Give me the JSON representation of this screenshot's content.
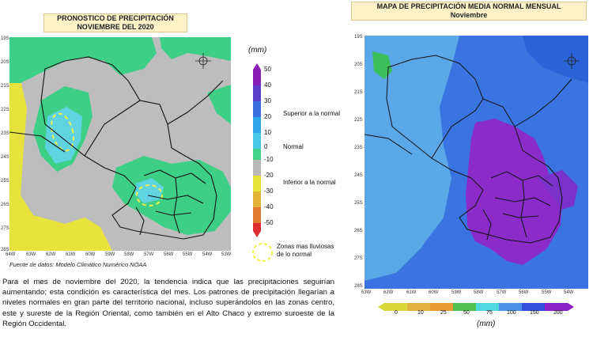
{
  "left_map": {
    "title_line1": "PRONOSTICO DE PRECIPITACIÓN",
    "title_line2": "NOVIEMBRE DEL 2020",
    "lat_ticks": [
      "19S",
      "20S",
      "21S",
      "22S",
      "23S",
      "24S",
      "25S",
      "26S",
      "27S",
      "28S"
    ],
    "lon_ticks": [
      "64W",
      "63W",
      "62W",
      "61W",
      "60W",
      "59W",
      "58W",
      "57W",
      "56W",
      "55W",
      "54W",
      "53W"
    ],
    "source": "Fuente de datos: Modelo Climático Numérico NOAA",
    "unit": "(mm)",
    "colorbar_labels": [
      "50",
      "40",
      "30",
      "20",
      "10",
      "0",
      "-10",
      "-20",
      "-30",
      "-40",
      "-50"
    ],
    "colorbar_colors": [
      "#8a1fb8",
      "#5a3fc8",
      "#3a6fe0",
      "#2ea6ea",
      "#46c9e6",
      "#3fd48a",
      "#b9b9b9",
      "#e6e23a",
      "#e2b43a",
      "#e07a2e",
      "#dc2e2e"
    ],
    "categories": {
      "above": "Superior a la normal",
      "normal": "Normal",
      "below": "Inferior a la normal"
    },
    "legend_dashed": "Zonas mas lluviosas de lo normal",
    "colors": {
      "gray": "#bdbdbd",
      "green": "#3ecf86",
      "cyan": "#5fd3e0",
      "yellow": "#e8e33c",
      "dashed": "#f0f04a"
    }
  },
  "right_map": {
    "title_line1": "MAPA DE PRECIPITACIÓN MEDIA NORMAL MENSUAL",
    "title_line2": "Noviembre",
    "lat_ticks": [
      "19S",
      "20S",
      "21S",
      "22S",
      "23S",
      "24S",
      "25S",
      "26S",
      "27S",
      "28S"
    ],
    "lon_ticks": [
      "63W",
      "62W",
      "61W",
      "60W",
      "59W",
      "58W",
      "57W",
      "56W",
      "55W",
      "54W"
    ],
    "colorbar_labels": [
      "0",
      "10",
      "25",
      "50",
      "75",
      "100",
      "150",
      "200"
    ],
    "colorbar_colors": [
      "#d8d83a",
      "#e0b040",
      "#e89a36",
      "#4fc24f",
      "#4fd8e0",
      "#4a90e8",
      "#3450d8",
      "#8a22c8"
    ],
    "unit": "(mm)",
    "colors": {
      "blue": "#2f6fe6",
      "lightblue": "#5aa8e8",
      "purple": "#8b2cc9",
      "green": "#3bbf5a"
    }
  },
  "paragraph": "Para el mes de noviembre del 2020, la tendencia indica que las precipitaciones seguirían aumentando; esta condición es característica del mes. Los patrones de precipitación llegarían a niveles normales en gran parte del territorio nacional, incluso superándolos en las zonas centro, este y sureste de la Región Oriental, como también en el Alto Chaco y extremo suroeste de la Región Occidental."
}
